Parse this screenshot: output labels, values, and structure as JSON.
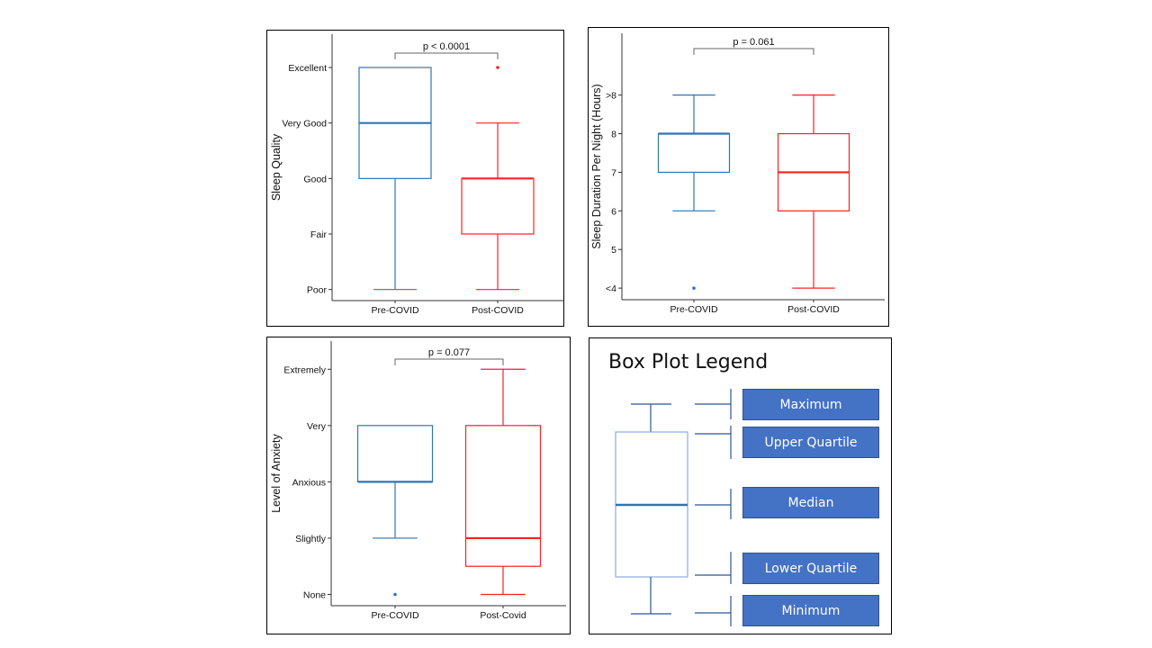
{
  "colors": {
    "pre": "#2e75b6",
    "post": "#ff2020",
    "axis": "#333333",
    "legend_fill": "#4472c4",
    "legend_line": "#2f5597"
  },
  "chart_data": [
    {
      "type": "box",
      "id": "quality",
      "title": "",
      "xlabel": "",
      "ylabel": "Sleep Quality",
      "categories": [
        "Pre-COVID",
        "Post-COVID"
      ],
      "y_ticks": [
        {
          "value": 1,
          "label": "Poor"
        },
        {
          "value": 2,
          "label": "Fair"
        },
        {
          "value": 3,
          "label": "Good"
        },
        {
          "value": 4,
          "label": "Very Good"
        },
        {
          "value": 5,
          "label": "Excellent"
        }
      ],
      "ylim": [
        0.8,
        5.6
      ],
      "boxes": [
        {
          "name": "Pre-COVID",
          "min": 1,
          "q1": 3,
          "median": 4,
          "q3": 5,
          "max": 5,
          "outliers": []
        },
        {
          "name": "Post-COVID",
          "min": 1,
          "q1": 2,
          "median": 3,
          "q3": 3,
          "max": 4,
          "outliers": [
            5
          ]
        }
      ],
      "annotation": "p < 0.0001"
    },
    {
      "type": "box",
      "id": "duration",
      "title": "",
      "xlabel": "",
      "ylabel": "Sleep Duration Per Night (Hours)",
      "categories": [
        "Pre-COVID",
        "Post-COVID"
      ],
      "y_ticks": [
        {
          "value": 4,
          "label": "<4"
        },
        {
          "value": 5,
          "label": "5"
        },
        {
          "value": 6,
          "label": "6"
        },
        {
          "value": 7,
          "label": "7"
        },
        {
          "value": 8,
          "label": "8"
        },
        {
          "value": 9,
          "label": ">8"
        }
      ],
      "ylim": [
        3.7,
        10.6
      ],
      "boxes": [
        {
          "name": "Pre-COVID",
          "min": 6,
          "q1": 7,
          "median": 8,
          "q3": 8,
          "max": 9,
          "outliers": [
            4
          ]
        },
        {
          "name": "Post-COVID",
          "min": 4,
          "q1": 6,
          "median": 7,
          "q3": 8,
          "max": 9,
          "outliers": []
        }
      ],
      "annotation": "p = 0.061"
    },
    {
      "type": "box",
      "id": "anxiety",
      "title": "",
      "xlabel": "",
      "ylabel": "Level of Anxiety",
      "categories": [
        "Pre-COVID",
        "Post-Covid"
      ],
      "y_ticks": [
        {
          "value": 1,
          "label": "None"
        },
        {
          "value": 2,
          "label": "Slightly"
        },
        {
          "value": 3,
          "label": "Anxious"
        },
        {
          "value": 4,
          "label": "Very"
        },
        {
          "value": 5,
          "label": "Extremely"
        }
      ],
      "ylim": [
        0.8,
        5.5
      ],
      "boxes": [
        {
          "name": "Pre-COVID",
          "min": 2,
          "q1": 3,
          "median": 3,
          "q3": 4,
          "max": 4,
          "outliers": [
            1
          ]
        },
        {
          "name": "Post-Covid",
          "min": 1,
          "q1": 1.5,
          "median": 2,
          "q3": 4,
          "max": 5,
          "outliers": []
        }
      ],
      "annotation": "p = 0.077"
    }
  ],
  "legend": {
    "title": "Box Plot Legend",
    "items": [
      "Maximum",
      "Upper Quartile",
      "Median",
      "Lower Quartile",
      "Minimum"
    ]
  }
}
